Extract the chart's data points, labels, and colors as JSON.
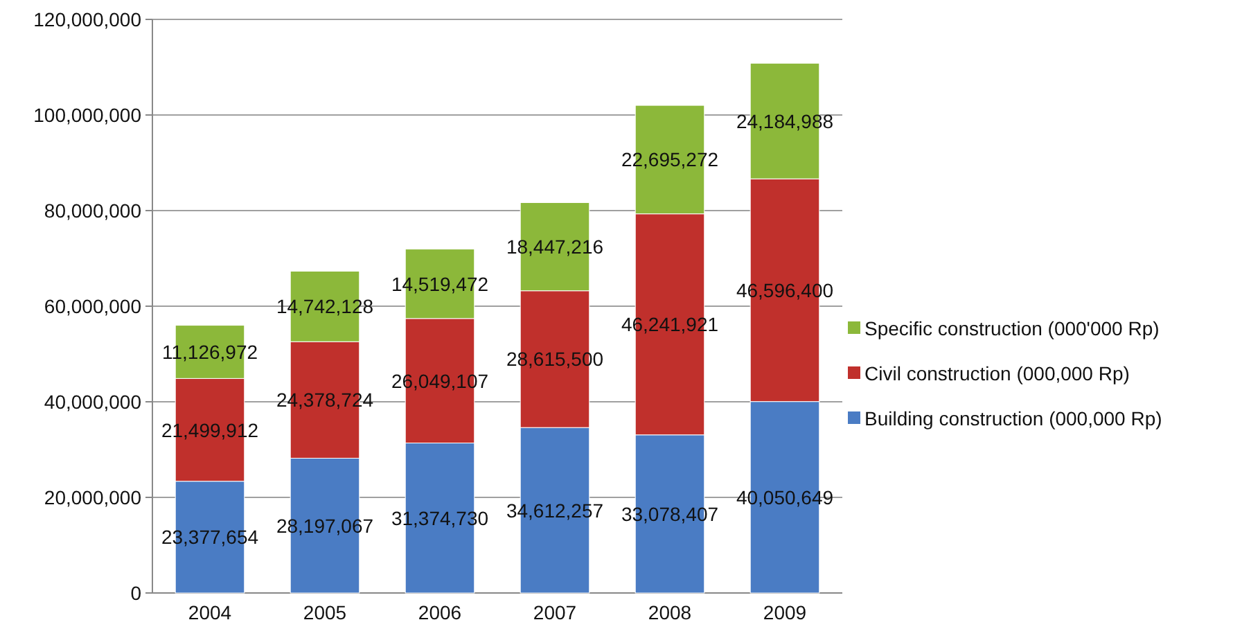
{
  "chart_data": {
    "type": "bar",
    "stacked": true,
    "categories": [
      "2004",
      "2005",
      "2006",
      "2007",
      "2008",
      "2009"
    ],
    "series": [
      {
        "name": "Building construction (000,000 Rp)",
        "color": "#4a7cc4",
        "values": [
          23377654,
          28197067,
          31374730,
          34612257,
          33078407,
          40050649
        ],
        "value_labels": [
          "23,377,654",
          "28,197,067",
          "31,374,730",
          "34,612,257",
          "33,078,407",
          "40,050,649"
        ]
      },
      {
        "name": "Civil construction (000,000 Rp)",
        "color": "#c0302c",
        "values": [
          21499912,
          24378724,
          26049107,
          28615500,
          46241921,
          46596400
        ],
        "value_labels": [
          "21,499,912",
          "24,378,724",
          "26,049,107",
          "28,615,500",
          "46,241,921",
          "46,596,400"
        ]
      },
      {
        "name": "Specific construction (000'000 Rp)",
        "color": "#8cb83a",
        "values": [
          11126972,
          14742128,
          14519472,
          18447216,
          22695272,
          24184988
        ],
        "value_labels": [
          "11,126,972",
          "14,742,128",
          "14,519,472",
          "18,447,216",
          "22,695,272",
          "24,184,988"
        ]
      }
    ],
    "ylim": [
      0,
      120000000
    ],
    "yticks": [
      0,
      {
        "value": 20000000,
        "label": "20,000,000"
      },
      {
        "value": 40000000,
        "label": "40,000,000"
      },
      {
        "value": 60000000,
        "label": "60,000,000"
      },
      {
        "value": 80000000,
        "label": "80,000,000"
      },
      {
        "value": 100000000,
        "label": "100,000,000"
      },
      {
        "value": 120000000,
        "label": "120,000,000"
      }
    ],
    "grid": "y",
    "legend": "right"
  }
}
